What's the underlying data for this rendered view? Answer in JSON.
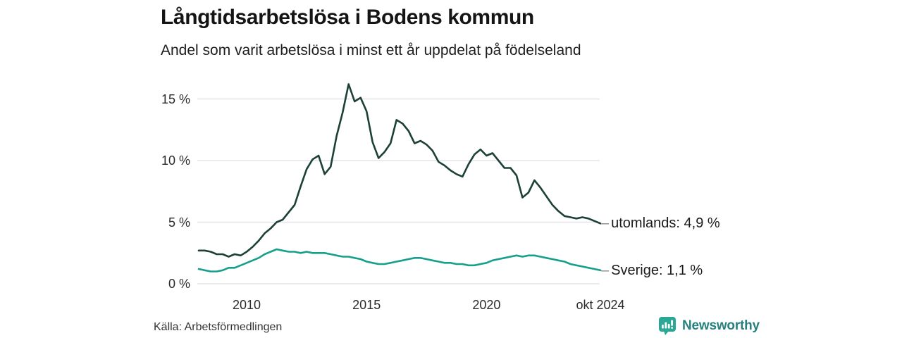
{
  "header": {
    "title": "Långtidsarbetslösa i Bodens kommun",
    "subtitle": "Andel som varit arbetslösa i minst ett år uppdelat på födelseland"
  },
  "footer": {
    "source": "Källa: Arbetsförmedlingen",
    "brand": "Newsworthy"
  },
  "colors": {
    "text": "#1a1a1a",
    "grid": "#e3e3ea",
    "connector": "#8a8a8a",
    "utomlands_line": "#1d4037",
    "sverige_line": "#16a08c",
    "brand_text": "#28807f",
    "brand_icon": "#2ba795"
  },
  "chart_data": {
    "type": "line",
    "title": "Långtidsarbetslösa i Bodens kommun",
    "subtitle": "Andel som varit arbetslösa i minst ett år uppdelat på födelseland",
    "source": "Källa: Arbetsförmedlingen",
    "x_unit": "decimal_year",
    "x_start": 2008.0,
    "x_step": 0.25,
    "ylim": [
      0,
      17.5
    ],
    "grid": "horizontal",
    "connector": "–",
    "y_ticks": [
      {
        "label": "0 %",
        "value": 0
      },
      {
        "label": "5 %",
        "value": 5
      },
      {
        "label": "10 %",
        "value": 10
      },
      {
        "label": "15 %",
        "value": 15
      }
    ],
    "x_ticks": [
      {
        "label": "2010",
        "year": 2010
      },
      {
        "label": "2015",
        "year": 2015
      },
      {
        "label": "2020",
        "year": 2020
      },
      {
        "label": "okt 2024",
        "year": 2024.75
      }
    ],
    "series": [
      {
        "id": "utomlands",
        "name": "utomlands",
        "end_label": "utomlands: 4,9 %",
        "end_value_label": "4,9 %",
        "color": "#1d4037",
        "values": [
          2.7,
          2.7,
          2.6,
          2.4,
          2.4,
          2.2,
          2.4,
          2.3,
          2.6,
          3.0,
          3.5,
          4.1,
          4.5,
          5.0,
          5.2,
          5.8,
          6.4,
          7.9,
          9.3,
          10.1,
          10.4,
          8.9,
          9.5,
          12.0,
          13.9,
          16.2,
          14.8,
          15.1,
          14.0,
          11.5,
          10.2,
          10.7,
          11.4,
          13.3,
          13.0,
          12.4,
          11.4,
          11.6,
          11.3,
          10.8,
          9.9,
          9.6,
          9.2,
          8.9,
          8.7,
          9.7,
          10.5,
          10.9,
          10.4,
          10.6,
          10.0,
          9.4,
          9.4,
          8.8,
          7.0,
          7.4,
          8.4,
          7.8,
          7.1,
          6.4,
          5.9,
          5.5,
          5.4,
          5.3,
          5.4,
          5.3,
          5.1,
          4.9
        ]
      },
      {
        "id": "sverige",
        "name": "Sverige",
        "end_label": "Sverige: 1,1 %",
        "end_value_label": "1,1 %",
        "color": "#16a08c",
        "values": [
          1.2,
          1.1,
          1.0,
          1.0,
          1.1,
          1.3,
          1.3,
          1.5,
          1.7,
          1.9,
          2.1,
          2.4,
          2.6,
          2.8,
          2.7,
          2.6,
          2.6,
          2.5,
          2.6,
          2.5,
          2.5,
          2.5,
          2.4,
          2.3,
          2.2,
          2.2,
          2.1,
          2.0,
          1.8,
          1.7,
          1.6,
          1.6,
          1.7,
          1.8,
          1.9,
          2.0,
          2.1,
          2.1,
          2.0,
          1.9,
          1.8,
          1.7,
          1.7,
          1.6,
          1.6,
          1.5,
          1.5,
          1.6,
          1.7,
          1.9,
          2.0,
          2.1,
          2.2,
          2.3,
          2.2,
          2.3,
          2.3,
          2.2,
          2.1,
          2.0,
          1.9,
          1.8,
          1.6,
          1.5,
          1.4,
          1.3,
          1.2,
          1.1
        ]
      }
    ]
  }
}
